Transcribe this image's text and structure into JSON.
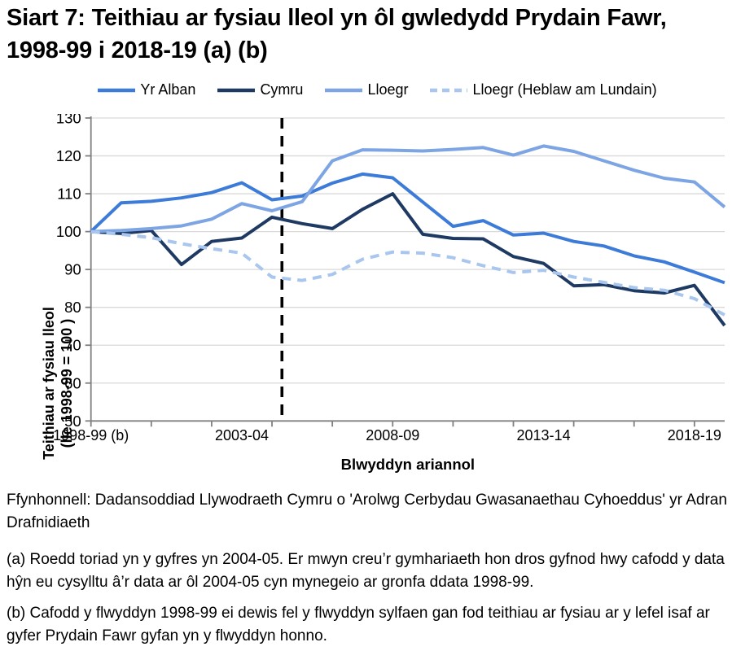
{
  "title": "Siart 7: Teithiau ar fysiau lleol yn ôl gwledydd Prydain Fawr, 1998-99 i 2018-19 (a) (b)",
  "legend": [
    {
      "label": "Yr Alban",
      "color": "#3D7BD8",
      "dashed": false
    },
    {
      "label": "Cymru",
      "color": "#1E3A63",
      "dashed": false
    },
    {
      "label": "Lloegr",
      "color": "#7EA5E3",
      "dashed": false
    },
    {
      "label": "Lloegr (Heblaw am Lundain)",
      "color": "#A9C6EF",
      "dashed": true
    }
  ],
  "y_axis": {
    "title_line1": "Teithiau ar fysiau lleol",
    "title_line2": "(lle 1998-99 = 100 )"
  },
  "x_axis": {
    "title": "Blwyddyn ariannol",
    "tick_labels": [
      "1998-99 (b)",
      "2003-04",
      "2008-09",
      "2013-14",
      "2018-19"
    ]
  },
  "colors": {
    "axis": "#808080",
    "gridline": "#D9D9D9",
    "break_line": "#000000",
    "text": "#000000"
  },
  "chart_data": {
    "type": "line",
    "title": "Siart 7: Teithiau ar fysiau lleol yn ôl gwledydd Prydain Fawr, 1998-99 i 2018-19 (a) (b)",
    "xlabel": "Blwyddyn ariannol",
    "ylabel": "Teithiau ar fysiau lleol (lle 1998-99 = 100 )",
    "ylim": [
      50,
      130
    ],
    "yticks": [
      50,
      60,
      70,
      80,
      90,
      100,
      110,
      120,
      130
    ],
    "grid": true,
    "legend_position": "top",
    "x": [
      "1998-99",
      "1999-00",
      "2000-01",
      "2001-02",
      "2002-03",
      "2003-04",
      "2004-05",
      "2005-06",
      "2006-07",
      "2007-08",
      "2008-09",
      "2009-10",
      "2010-11",
      "2011-12",
      "2012-13",
      "2013-14",
      "2014-15",
      "2015-16",
      "2016-17",
      "2017-18",
      "2018-19",
      "2019-20"
    ],
    "xtick_label_indices": [
      0,
      5,
      10,
      15,
      20
    ],
    "break_line_x_index": 6.33,
    "series": [
      {
        "name": "Yr Alban",
        "color": "#3D7BD8",
        "dashed": false,
        "values": [
          100,
          107.6,
          108,
          108.9,
          110.3,
          112.9,
          108.4,
          109.4,
          112.8,
          115.2,
          114.2,
          107.8,
          101.4,
          102.9,
          99.1,
          99.6,
          97.4,
          96.2,
          93.6,
          92,
          89.3,
          86.5
        ]
      },
      {
        "name": "Cymru",
        "color": "#1E3A63",
        "dashed": false,
        "values": [
          100,
          99.5,
          100.3,
          91.3,
          97.4,
          98.3,
          103.8,
          102.1,
          100.8,
          105.9,
          110,
          99.3,
          98.2,
          98.1,
          93.4,
          91.6,
          85.7,
          86,
          84.4,
          83.8,
          85.8,
          75.2
        ]
      },
      {
        "name": "Lloegr",
        "color": "#7EA5E3",
        "dashed": false,
        "values": [
          100,
          100.3,
          100.8,
          101.5,
          103.3,
          107.4,
          105.5,
          107.9,
          118.7,
          121.6,
          121.5,
          121.3,
          121.7,
          122.2,
          120.2,
          122.6,
          121.2,
          118.7,
          116.2,
          114.1,
          113.1,
          106.5
        ]
      },
      {
        "name": "Lloegr (Heblaw am Lundain)",
        "color": "#A9C6EF",
        "dashed": true,
        "values": [
          100,
          99.3,
          98.4,
          96.8,
          95.5,
          94.3,
          88,
          87.1,
          88.7,
          92.7,
          94.6,
          94.3,
          93.1,
          91,
          89.2,
          89.8,
          88,
          86.6,
          85.2,
          84.5,
          82.3,
          78
        ]
      }
    ]
  },
  "source": "Ffynhonnell: Dadansoddiad Llywodraeth Cymru o 'Arolwg Cerbydau Gwasanaethau Cyhoeddus' yr Adran Drafnidiaeth",
  "footnote_a": "(a) Roedd toriad yn y gyfres yn 2004-05. Er mwyn creu’r gymhariaeth hon dros gyfnod hwy cafodd y data hŷn eu cysylltu â’r data ar ôl 2004-05 cyn mynegeio ar gronfa ddata 1998-99.",
  "footnote_b": "(b) Cafodd y flwyddyn 1998-99 ei dewis fel y flwyddyn sylfaen gan fod teithiau ar fysiau ar y lefel isaf ar gyfer Prydain Fawr gyfan yn y flwyddyn honno."
}
